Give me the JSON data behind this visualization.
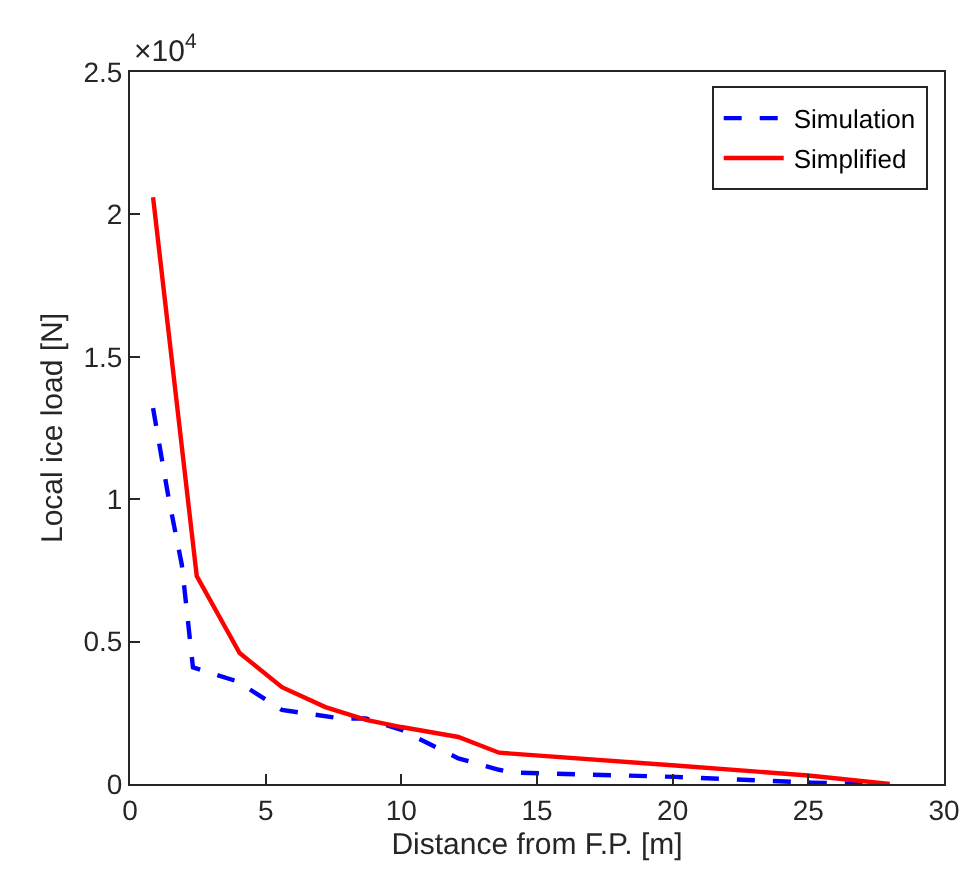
{
  "chart_data": {
    "type": "line",
    "xlabel": "Distance from F.P. [m]",
    "ylabel": "Local ice load [N]",
    "annotations": [
      "×10$^{4}$"
    ],
    "xlim": [
      0,
      30
    ],
    "xticks": [
      0,
      5,
      10,
      15,
      20,
      25,
      30
    ],
    "ylim": [
      0,
      2.5
    ],
    "yticks": [
      0,
      0.5,
      1,
      1.5,
      2,
      2.5
    ],
    "legend": "top right",
    "series": [
      {
        "name": "Simulation",
        "color": "#0000ff",
        "line_style": "dashed",
        "x": [
          0.85,
          1.43,
          1.91,
          2.32,
          3.96,
          5.6,
          7.8,
          8.7,
          10.0,
          12.1,
          13.6,
          14.1,
          20.1,
          25.1,
          27
        ],
        "values": [
          1.32,
          1.0,
          0.77,
          0.41,
          0.36,
          0.26,
          0.23,
          0.23,
          0.19,
          0.09,
          0.05,
          0.04,
          0.025,
          0.005,
          0
        ]
      },
      {
        "name": "Simplified",
        "color": "#ff0000",
        "line_style": "solid",
        "x": [
          0.85,
          2.46,
          4.04,
          5.6,
          7.2,
          8.7,
          10.0,
          12.1,
          13.6,
          20.1,
          25.0,
          28
        ],
        "values": [
          2.06,
          0.73,
          0.46,
          0.34,
          0.27,
          0.225,
          0.2,
          0.165,
          0.11,
          0.065,
          0.03,
          0
        ]
      }
    ]
  }
}
